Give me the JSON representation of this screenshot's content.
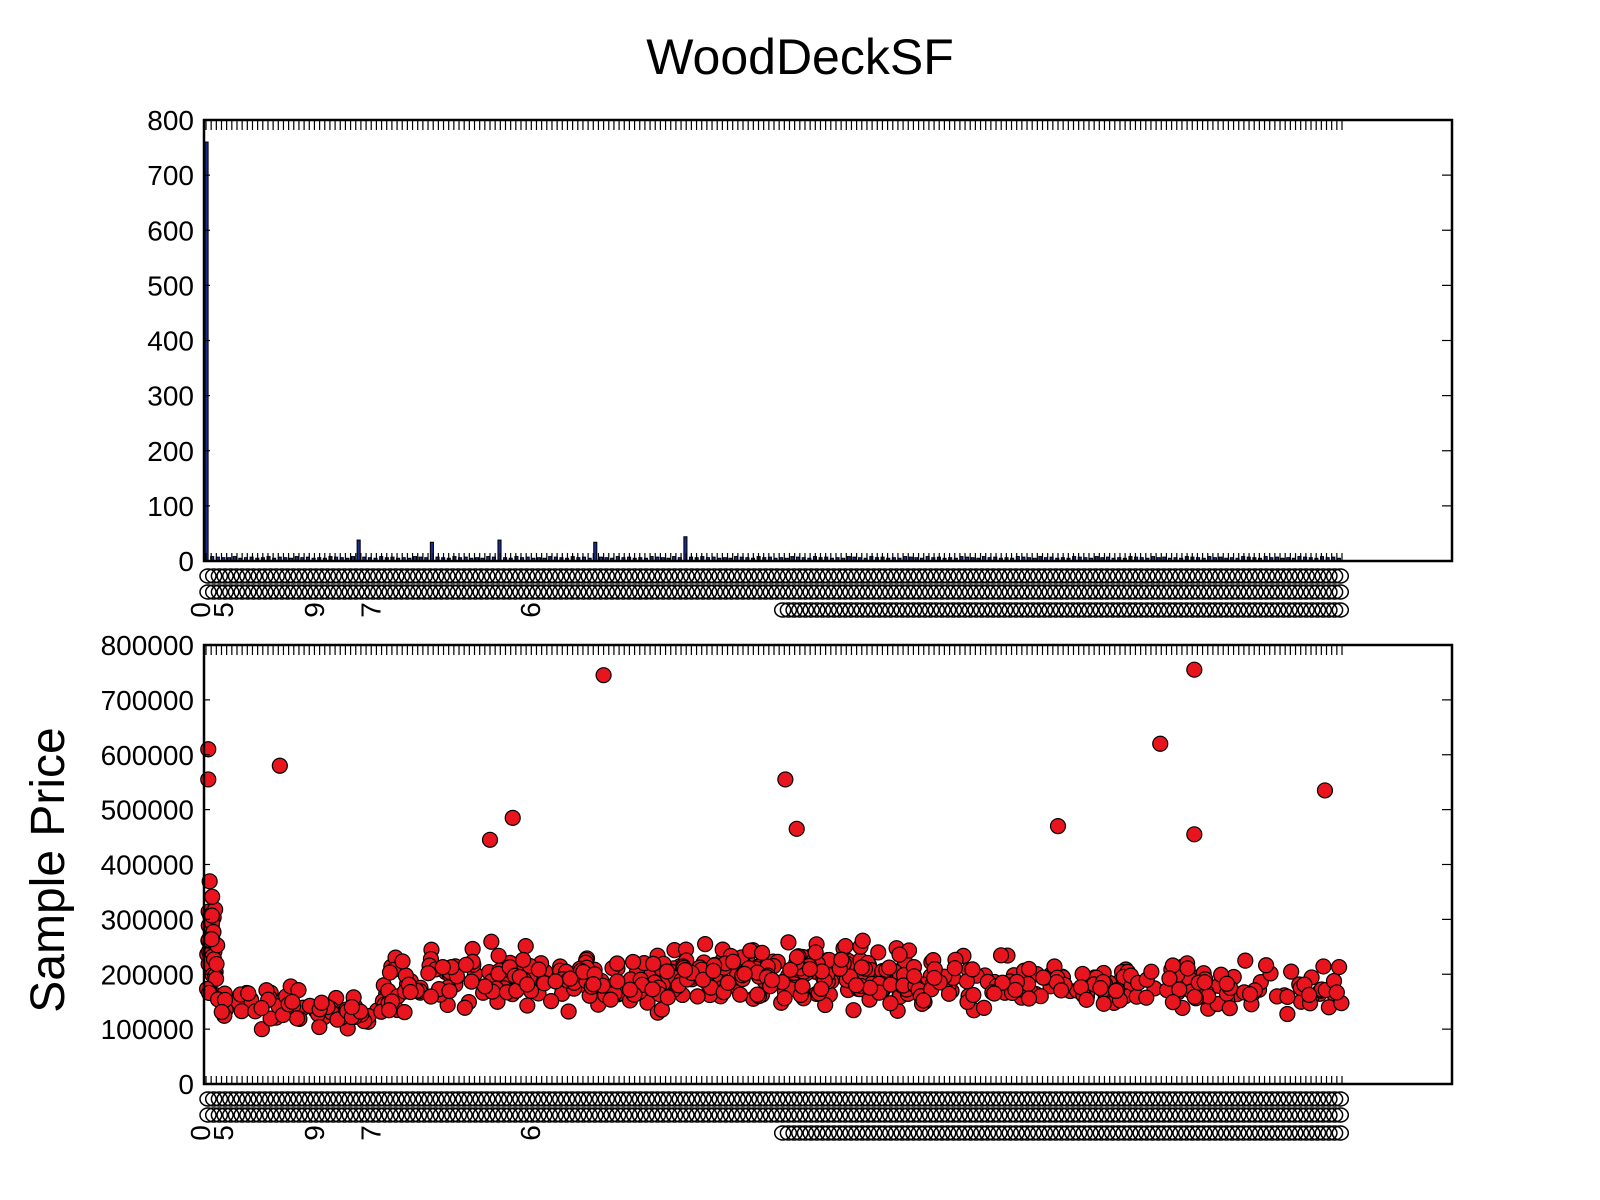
{
  "chart_data": [
    {
      "type": "bar",
      "title": "WoodDeckSF",
      "xlabel": "",
      "ylabel": "",
      "ylim": [
        0,
        800
      ],
      "yticks": [
        "0",
        "100",
        "200",
        "300",
        "400",
        "500",
        "600",
        "700",
        "800"
      ],
      "bar_color": "#1a2b8f",
      "categories_note": "many numeric WoodDeckSF values (overlapping, illegible tick labels)",
      "x_tick_labels_visible": [
        "0",
        "5",
        "9",
        "7",
        "6"
      ],
      "values": [
        760,
        8,
        7,
        6,
        6,
        8,
        5,
        6,
        7,
        5,
        6,
        8,
        5,
        7,
        6,
        5,
        8,
        6,
        7,
        5,
        6,
        5,
        8,
        7,
        6,
        5,
        8,
        38,
        7,
        6,
        5,
        8,
        6,
        7,
        5,
        6,
        5,
        8,
        7,
        6,
        34,
        7,
        6,
        5,
        8,
        6,
        7,
        5,
        6,
        5,
        8,
        7,
        38,
        6,
        5,
        8,
        6,
        7,
        5,
        6,
        5,
        8,
        7,
        6,
        5,
        8,
        6,
        7,
        5,
        34,
        7,
        6,
        5,
        8,
        6,
        7,
        5,
        6,
        5,
        8,
        7,
        6,
        5,
        8,
        6,
        44,
        7,
        6,
        8,
        6,
        7,
        5,
        6,
        5,
        8,
        7,
        6,
        5,
        8,
        6,
        7,
        5,
        6,
        5,
        8,
        7,
        6,
        5,
        8,
        6,
        7,
        5,
        6,
        5,
        8,
        7,
        6,
        5,
        8,
        6,
        7,
        5,
        6,
        5,
        8,
        7,
        6,
        5,
        8,
        6,
        7,
        5,
        6,
        5,
        8,
        7,
        6,
        5,
        8,
        6,
        7,
        5,
        6,
        5,
        8,
        7,
        6,
        5,
        8,
        6,
        7,
        5,
        6,
        5,
        8,
        7,
        6,
        5,
        8,
        6,
        7,
        5,
        6,
        5,
        8,
        7,
        6,
        5,
        8,
        6,
        7,
        5,
        6,
        5,
        8,
        7,
        6,
        5,
        8,
        6,
        7,
        5,
        6,
        5,
        8,
        7,
        6,
        5,
        8,
        6,
        7,
        5,
        6,
        5,
        8,
        7,
        6,
        5,
        8,
        6,
        7,
        5
      ]
    },
    {
      "type": "scatter",
      "title": "",
      "xlabel": "",
      "ylabel": "Sample Price",
      "ylim": [
        0,
        800000
      ],
      "yticks": [
        "0",
        "100000",
        "200000",
        "300000",
        "400000",
        "500000",
        "600000",
        "700000",
        "800000"
      ],
      "point_color": "#e8141e",
      "x_tick_labels_visible": [
        "0",
        "5",
        "9",
        "7",
        "6"
      ],
      "outliers": [
        {
          "x": 0.35,
          "y": 745000
        },
        {
          "x": 0.87,
          "y": 755000
        },
        {
          "x": 0.84,
          "y": 620000
        },
        {
          "x": 0.065,
          "y": 580000
        },
        {
          "x": 0.51,
          "y": 555000
        },
        {
          "x": 0.985,
          "y": 535000
        },
        {
          "x": 0.002,
          "y": 610000
        },
        {
          "x": 0.002,
          "y": 555000
        },
        {
          "x": 0.27,
          "y": 485000
        },
        {
          "x": 0.52,
          "y": 465000
        },
        {
          "x": 0.75,
          "y": 470000
        },
        {
          "x": 0.87,
          "y": 455000
        },
        {
          "x": 0.25,
          "y": 445000
        }
      ],
      "clusters": [
        {
          "x_from": 0.0,
          "x_to": 0.01,
          "y_center": 250000,
          "y_spread": 180000,
          "count": 40
        },
        {
          "x_from": 0.01,
          "x_to": 0.16,
          "y_center": 140000,
          "y_spread": 60000,
          "count": 70
        },
        {
          "x_from": 0.16,
          "x_to": 0.42,
          "y_center": 190000,
          "y_spread": 90000,
          "count": 190
        },
        {
          "x_from": 0.42,
          "x_to": 0.62,
          "y_center": 200000,
          "y_spread": 90000,
          "count": 200
        },
        {
          "x_from": 0.62,
          "x_to": 0.82,
          "y_center": 180000,
          "y_spread": 75000,
          "count": 120
        },
        {
          "x_from": 0.82,
          "x_to": 1.0,
          "y_center": 175000,
          "y_spread": 70000,
          "count": 80
        }
      ]
    }
  ]
}
